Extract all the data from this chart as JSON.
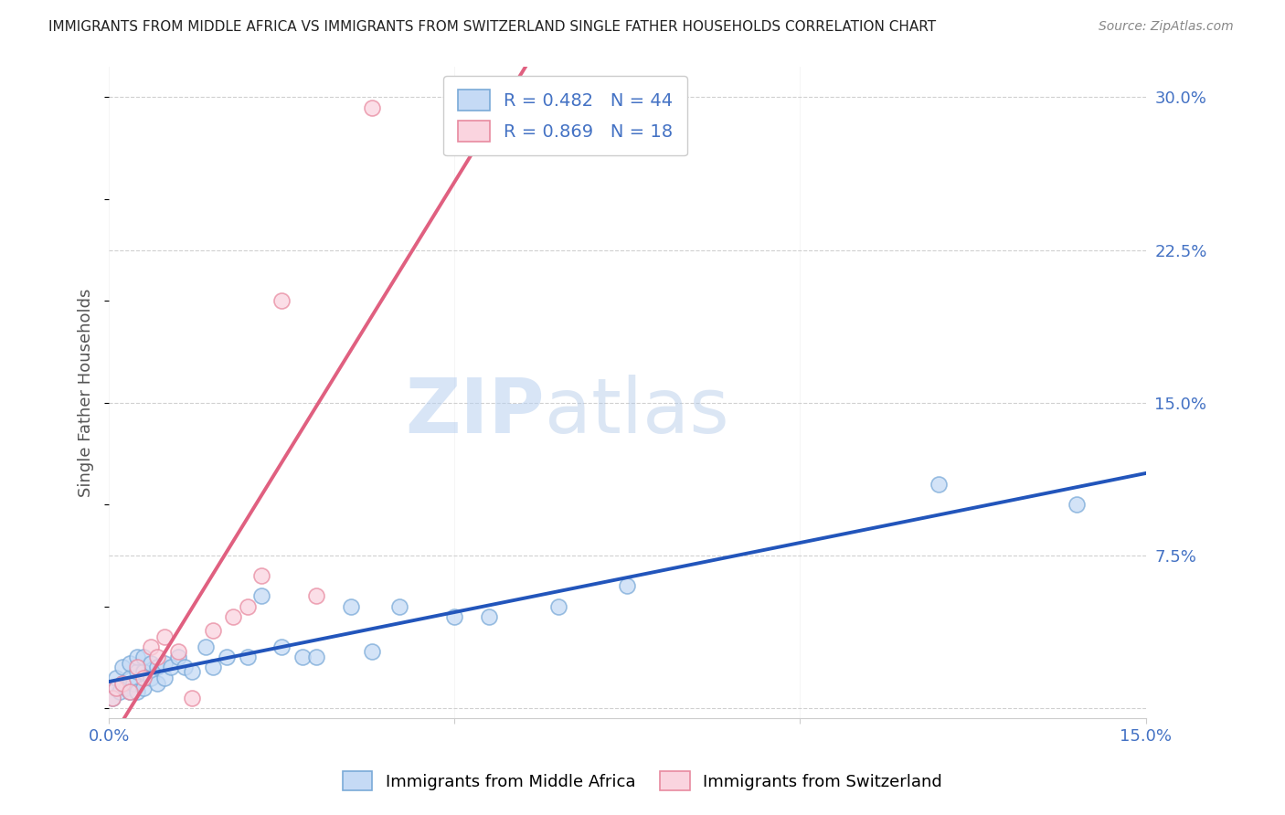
{
  "title": "IMMIGRANTS FROM MIDDLE AFRICA VS IMMIGRANTS FROM SWITZERLAND SINGLE FATHER HOUSEHOLDS CORRELATION CHART",
  "source": "Source: ZipAtlas.com",
  "ylabel": "Single Father Households",
  "ytick_values": [
    0.0,
    0.075,
    0.15,
    0.225,
    0.3
  ],
  "ytick_labels": [
    "",
    "7.5%",
    "15.0%",
    "22.5%",
    "30.0%"
  ],
  "xlim": [
    0.0,
    0.15
  ],
  "ylim": [
    -0.005,
    0.315
  ],
  "background_color": "#ffffff",
  "grid_color": "#d0d0d0",
  "watermark_zip": "ZIP",
  "watermark_atlas": "atlas",
  "series1": {
    "label": "Immigrants from Middle Africa",
    "R": 0.482,
    "N": 44,
    "color_face": "#c5daf5",
    "color_edge": "#7aaad8",
    "color_line": "#2255bb",
    "x": [
      0.0005,
      0.001,
      0.001,
      0.0015,
      0.002,
      0.002,
      0.0025,
      0.003,
      0.003,
      0.003,
      0.0035,
      0.004,
      0.004,
      0.004,
      0.005,
      0.005,
      0.005,
      0.006,
      0.006,
      0.007,
      0.007,
      0.008,
      0.008,
      0.009,
      0.01,
      0.011,
      0.012,
      0.014,
      0.015,
      0.017,
      0.02,
      0.022,
      0.025,
      0.028,
      0.03,
      0.035,
      0.038,
      0.042,
      0.05,
      0.055,
      0.065,
      0.075,
      0.12,
      0.14
    ],
    "y": [
      0.005,
      0.01,
      0.015,
      0.008,
      0.012,
      0.02,
      0.01,
      0.008,
      0.015,
      0.022,
      0.012,
      0.008,
      0.018,
      0.025,
      0.01,
      0.018,
      0.025,
      0.015,
      0.022,
      0.012,
      0.02,
      0.015,
      0.022,
      0.02,
      0.025,
      0.02,
      0.018,
      0.03,
      0.02,
      0.025,
      0.025,
      0.055,
      0.03,
      0.025,
      0.025,
      0.05,
      0.028,
      0.05,
      0.045,
      0.045,
      0.05,
      0.06,
      0.11,
      0.1
    ]
  },
  "series2": {
    "label": "Immigrants from Switzerland",
    "R": 0.869,
    "N": 18,
    "color_face": "#fad4df",
    "color_edge": "#e88aa0",
    "color_line": "#e06080",
    "x": [
      0.0005,
      0.001,
      0.002,
      0.003,
      0.004,
      0.005,
      0.006,
      0.007,
      0.008,
      0.01,
      0.012,
      0.015,
      0.018,
      0.02,
      0.022,
      0.025,
      0.03,
      0.038
    ],
    "y": [
      0.005,
      0.01,
      0.012,
      0.008,
      0.02,
      0.015,
      0.03,
      0.025,
      0.035,
      0.028,
      0.005,
      0.038,
      0.045,
      0.05,
      0.065,
      0.2,
      0.055,
      0.295
    ]
  }
}
